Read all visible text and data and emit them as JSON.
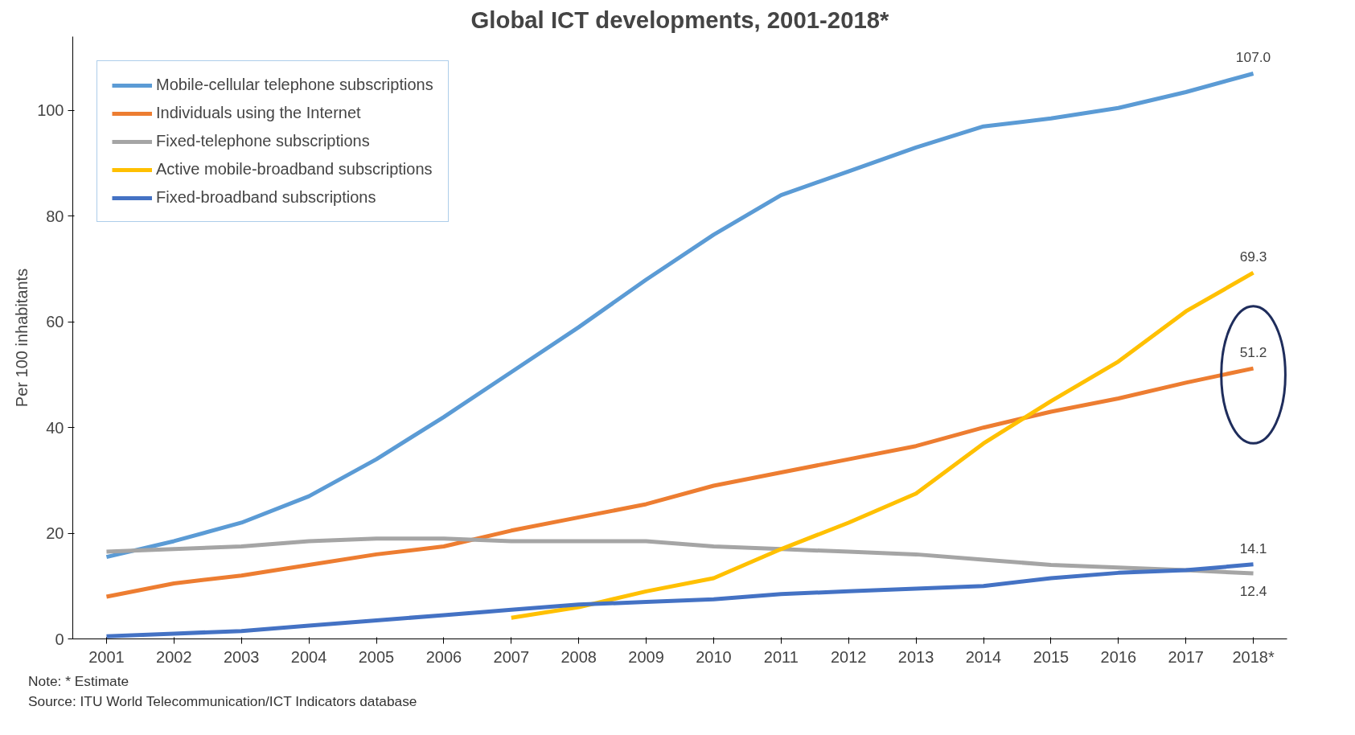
{
  "chart_data": {
    "type": "line",
    "title": "Global ICT developments, 2001-2018*",
    "ylabel": "Per 100 inhabitants",
    "categories": [
      "2001",
      "2002",
      "2003",
      "2004",
      "2005",
      "2006",
      "2007",
      "2008",
      "2009",
      "2010",
      "2011",
      "2012",
      "2013",
      "2014",
      "2015",
      "2016",
      "2017",
      "2018*"
    ],
    "series": [
      {
        "name": "Mobile-cellular telephone subscriptions",
        "color": "#5b9bd5",
        "values": [
          15.5,
          18.5,
          22,
          27,
          34,
          42,
          50.5,
          59,
          68,
          76.5,
          84,
          88.5,
          93,
          97,
          98.5,
          100.5,
          103.5,
          107.0
        ],
        "value_labels": [
          null,
          null,
          null,
          null,
          null,
          null,
          null,
          null,
          null,
          null,
          null,
          null,
          null,
          null,
          null,
          null,
          null,
          "107.0"
        ]
      },
      {
        "name": "Individuals using the Internet",
        "color": "#ed7d31",
        "values": [
          8,
          10.5,
          12,
          14,
          16,
          17.5,
          20.5,
          23,
          25.5,
          29,
          31.5,
          34,
          36.5,
          40,
          43,
          45.5,
          48.5,
          51.2
        ],
        "value_labels": [
          null,
          null,
          null,
          null,
          null,
          null,
          null,
          null,
          null,
          null,
          null,
          null,
          null,
          null,
          null,
          null,
          null,
          "51.2"
        ]
      },
      {
        "name": "Fixed-telephone subscriptions",
        "color": "#a5a5a5",
        "values": [
          16.5,
          17,
          17.5,
          18.5,
          19,
          19,
          18.5,
          18.5,
          18.5,
          17.5,
          17,
          16.5,
          16,
          15,
          14,
          13.5,
          13,
          12.4
        ],
        "value_labels": [
          null,
          null,
          null,
          null,
          null,
          null,
          null,
          null,
          null,
          null,
          null,
          null,
          null,
          null,
          null,
          null,
          null,
          "12.4"
        ]
      },
      {
        "name": "Active mobile-broadband subscriptions",
        "color": "#ffc000",
        "values": [
          null,
          null,
          null,
          null,
          null,
          null,
          4,
          6,
          9,
          11.5,
          17,
          22,
          27.5,
          37,
          45,
          52.5,
          62,
          69.3
        ],
        "value_labels": [
          null,
          null,
          null,
          null,
          null,
          null,
          null,
          null,
          null,
          null,
          null,
          null,
          null,
          null,
          null,
          null,
          null,
          "69.3"
        ]
      },
      {
        "name": "Fixed-broadband subscriptions",
        "color": "#4472c4",
        "values": [
          0.5,
          1,
          1.5,
          2.5,
          3.5,
          4.5,
          5.5,
          6.5,
          7,
          7.5,
          8.5,
          9,
          9.5,
          10,
          11.5,
          12.5,
          13,
          14.1
        ],
        "value_labels": [
          null,
          null,
          null,
          null,
          null,
          null,
          null,
          null,
          null,
          null,
          null,
          null,
          null,
          null,
          null,
          null,
          null,
          "14.1"
        ]
      }
    ],
    "ylim": [
      0,
      114
    ],
    "yticks": [
      0,
      20,
      40,
      60,
      80,
      100
    ],
    "grid": false,
    "legend": "top left",
    "annotations": [
      "Note: * Estimate",
      "Source: ITU World Telecommunication/ICT Indicators database"
    ]
  }
}
